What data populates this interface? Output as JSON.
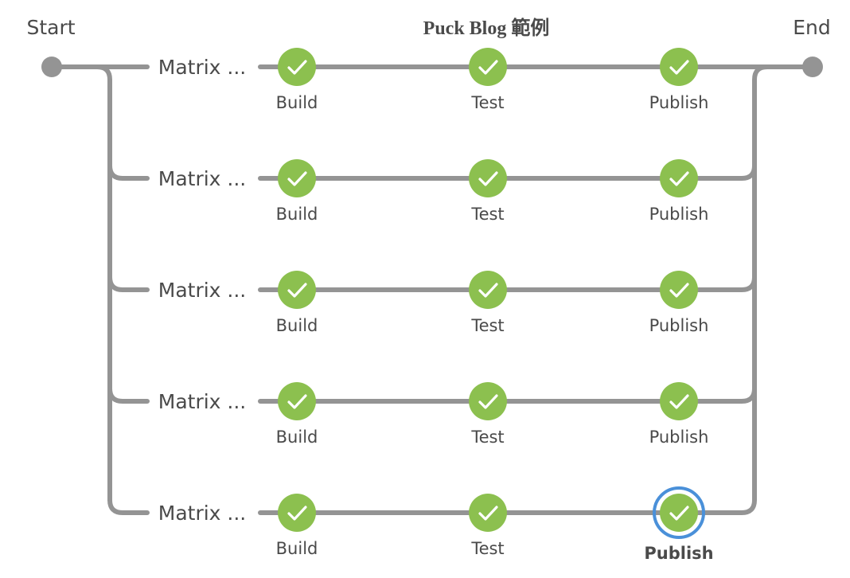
{
  "title": "Puck Blog 範例",
  "start_label": "Start",
  "end_label": "End",
  "colors": {
    "line": "#949494",
    "success": "#8cc04f",
    "check": "#ffffff",
    "selected_ring": "#4a90d9",
    "text": "#4a4a4a"
  },
  "icons": {
    "stage_status": "check-icon"
  },
  "branches": [
    {
      "label": "Matrix ...",
      "stages": [
        {
          "label": "Build",
          "status": "success"
        },
        {
          "label": "Test",
          "status": "success"
        },
        {
          "label": "Publish",
          "status": "success"
        }
      ]
    },
    {
      "label": "Matrix ...",
      "stages": [
        {
          "label": "Build",
          "status": "success"
        },
        {
          "label": "Test",
          "status": "success"
        },
        {
          "label": "Publish",
          "status": "success"
        }
      ]
    },
    {
      "label": "Matrix ...",
      "stages": [
        {
          "label": "Build",
          "status": "success"
        },
        {
          "label": "Test",
          "status": "success"
        },
        {
          "label": "Publish",
          "status": "success"
        }
      ]
    },
    {
      "label": "Matrix ...",
      "stages": [
        {
          "label": "Build",
          "status": "success"
        },
        {
          "label": "Test",
          "status": "success"
        },
        {
          "label": "Publish",
          "status": "success"
        }
      ]
    },
    {
      "label": "Matrix ...",
      "stages": [
        {
          "label": "Build",
          "status": "success"
        },
        {
          "label": "Test",
          "status": "success"
        },
        {
          "label": "Publish",
          "status": "success",
          "selected": true
        }
      ]
    }
  ]
}
